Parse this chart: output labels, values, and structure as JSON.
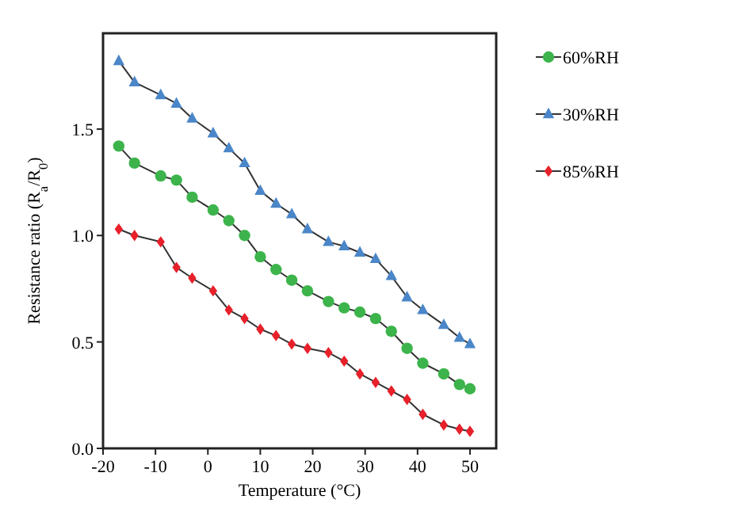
{
  "chart_data": {
    "type": "line",
    "xlabel": "Temperature (°C)",
    "ylabel": "Resistance ratio (R$_{a}$/R$_{0}$)",
    "x": [
      -17,
      -14,
      -9,
      -6,
      -3,
      1,
      4,
      7,
      10,
      13,
      16,
      19,
      23,
      26,
      29,
      32,
      35,
      38,
      41,
      45,
      48,
      50
    ],
    "xlim": [
      -20,
      55
    ],
    "xticks": [
      -20,
      -10,
      0,
      10,
      20,
      30,
      40,
      50
    ],
    "ylim": [
      0,
      1.95
    ],
    "yticks": [
      "0.0",
      0.5,
      "1.0",
      1.5
    ],
    "legend": "right",
    "grid": false,
    "series": [
      {
        "name": "60%RH",
        "color": "#3cb44b",
        "marker": "circle",
        "values": [
          1.42,
          1.34,
          1.28,
          1.26,
          1.18,
          1.12,
          1.07,
          1.0,
          0.9,
          0.84,
          0.79,
          0.74,
          0.69,
          0.66,
          0.64,
          0.61,
          0.55,
          0.47,
          0.4,
          0.35,
          0.3,
          0.28
        ]
      },
      {
        "name": "30%RH",
        "color": "#4a86c8",
        "marker": "triangle",
        "values": [
          1.82,
          1.72,
          1.66,
          1.62,
          1.55,
          1.48,
          1.41,
          1.34,
          1.21,
          1.15,
          1.1,
          1.03,
          0.97,
          0.95,
          0.92,
          0.89,
          0.81,
          0.71,
          0.65,
          0.58,
          0.52,
          0.49
        ]
      },
      {
        "name": "85%RH",
        "color": "#e8202a",
        "marker": "diamond",
        "values": [
          1.03,
          1.0,
          0.97,
          0.85,
          0.8,
          0.74,
          0.65,
          0.61,
          0.56,
          0.53,
          0.49,
          0.47,
          0.45,
          0.41,
          0.35,
          0.31,
          0.27,
          0.23,
          0.16,
          0.11,
          0.09,
          0.08
        ]
      }
    ]
  }
}
